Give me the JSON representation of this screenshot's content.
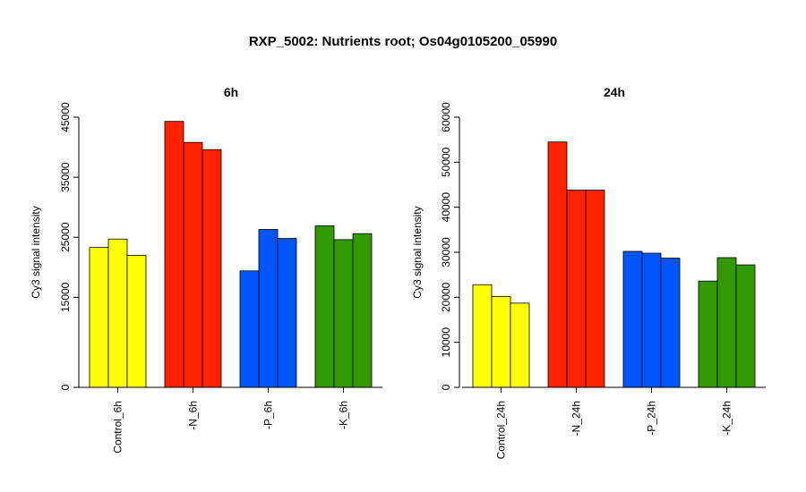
{
  "figure": {
    "title": "RXP_5002: Nutrients root; Os04g0105200_05990"
  },
  "chart_data": [
    {
      "type": "bar",
      "title": "6h",
      "xlabel": "",
      "ylabel": "Cy3 signal intensity",
      "categories": [
        "Control_6h",
        "-N_6h",
        "-P_6h",
        "-K_6h"
      ],
      "category_colors": [
        "#ffff00",
        "#ff2200",
        "#0055ff",
        "#339900"
      ],
      "bars_per_category": 3,
      "values": [
        [
          23300,
          24700,
          22000
        ],
        [
          44300,
          40800,
          39600
        ],
        [
          19400,
          26300,
          24800
        ],
        [
          26900,
          24600,
          25600
        ]
      ],
      "ylim": [
        0,
        45000
      ],
      "yticks": [
        0,
        15000,
        25000,
        35000,
        45000
      ],
      "ytick_labels": [
        "0",
        "15000",
        "25000",
        "35000",
        "45000"
      ],
      "grid": false
    },
    {
      "type": "bar",
      "title": "24h",
      "xlabel": "",
      "ylabel": "Cy3 signal intensity",
      "categories": [
        "Control_24h",
        "-N_24h",
        "-P_24h",
        "-K_24h"
      ],
      "category_colors": [
        "#ffff00",
        "#ff2200",
        "#0055ff",
        "#339900"
      ],
      "bars_per_category": 3,
      "values": [
        [
          22800,
          20200,
          18700
        ],
        [
          54500,
          43800,
          43800
        ],
        [
          30200,
          29800,
          28700
        ],
        [
          23600,
          28800,
          27200
        ]
      ],
      "ylim": [
        0,
        60000
      ],
      "yticks": [
        0,
        10000,
        20000,
        30000,
        40000,
        50000,
        60000
      ],
      "ytick_labels": [
        "0",
        "10000",
        "20000",
        "30000",
        "40000",
        "50000",
        "60000"
      ],
      "grid": false
    }
  ]
}
